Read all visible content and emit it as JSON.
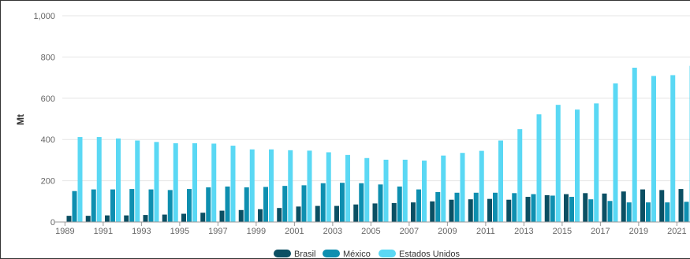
{
  "chart_data": {
    "type": "bar",
    "title": "",
    "xlabel": "",
    "ylabel": "Mt",
    "ylim": [
      0,
      1000
    ],
    "yticks": [
      0,
      200,
      400,
      600,
      800,
      1000
    ],
    "ytick_labels": [
      "0",
      "200",
      "400",
      "600",
      "800",
      "1,000"
    ],
    "grid": true,
    "legend_position": "bottom",
    "categories": [
      1989,
      1990,
      1991,
      1992,
      1993,
      1994,
      1995,
      1996,
      1997,
      1998,
      1999,
      2000,
      2001,
      2002,
      2003,
      2004,
      2005,
      2006,
      2007,
      2008,
      2009,
      2010,
      2011,
      2012,
      2013,
      2014,
      2015,
      2016,
      2017,
      2018,
      2019,
      2020,
      2021
    ],
    "xtick_labels": [
      "1989",
      "1991",
      "1993",
      "1995",
      "1997",
      "1999",
      "2001",
      "2003",
      "2005",
      "2007",
      "2009",
      "2011",
      "2013",
      "2015",
      "2017",
      "2019",
      "2021"
    ],
    "series": [
      {
        "name": "Brasil",
        "color": "#0b4f63",
        "values": [
          30,
          30,
          32,
          32,
          34,
          36,
          40,
          45,
          55,
          58,
          62,
          68,
          75,
          78,
          78,
          85,
          90,
          92,
          95,
          100,
          108,
          110,
          112,
          108,
          122,
          130,
          135,
          140,
          138,
          148,
          158,
          155,
          160
        ]
      },
      {
        "name": "México",
        "color": "#0e8fb0",
        "values": [
          150,
          158,
          158,
          160,
          158,
          155,
          160,
          168,
          172,
          168,
          170,
          175,
          178,
          188,
          190,
          188,
          182,
          172,
          158,
          145,
          142,
          142,
          142,
          140,
          135,
          128,
          122,
          110,
          102,
          95,
          95,
          95,
          98
        ]
      },
      {
        "name": "Estados Unidos",
        "color": "#5ad8f4",
        "values": [
          412,
          412,
          405,
          395,
          388,
          382,
          382,
          380,
          370,
          352,
          352,
          348,
          346,
          338,
          325,
          310,
          302,
          302,
          298,
          322,
          335,
          345,
          395,
          450,
          522,
          568,
          545,
          575,
          672,
          748,
          708,
          712,
          757
        ]
      }
    ]
  }
}
